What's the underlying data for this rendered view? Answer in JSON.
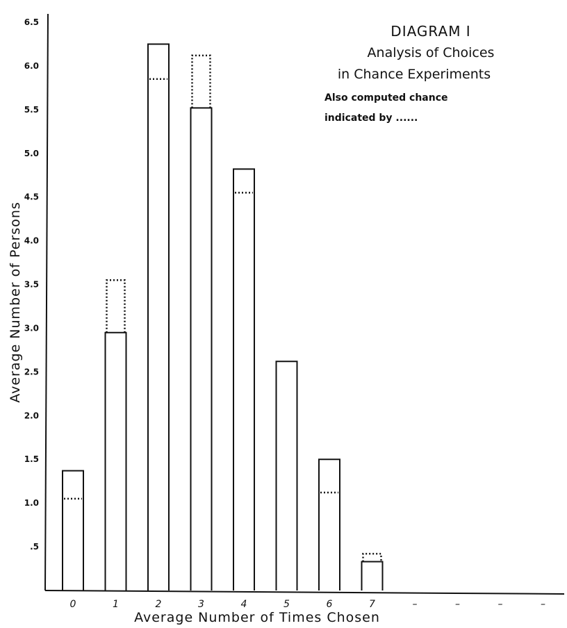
{
  "chart_data": {
    "type": "bar",
    "title": "DIAGRAM I",
    "subtitle_line1": "Analysis of Choices",
    "subtitle_line2": "in Chance Experiments",
    "note_line1": "Also computed chance",
    "note_line2": "indicated by ......",
    "xlabel": "Average Number of Times Chosen",
    "ylabel": "Average Number of Persons",
    "categories": [
      "0",
      "1",
      "2",
      "3",
      "4",
      "5",
      "6",
      "7"
    ],
    "extra_x_ticks": [
      "–",
      "–",
      "–",
      "–"
    ],
    "series": [
      {
        "values": [
          1.37,
          2.95,
          6.25,
          5.52,
          4.82,
          2.62,
          1.5,
          0.33
        ]
      },
      {
        "values": [
          1.05,
          3.55,
          5.85,
          6.12,
          4.55,
          null,
          1.12,
          0.42
        ]
      }
    ],
    "y_ticks": [
      ".5",
      "1.0",
      "1.5",
      "2.0",
      "2.5",
      "3.0",
      "3.5",
      "4.0",
      "4.5",
      "5.0",
      "5.5",
      "6.0",
      "6.5"
    ],
    "ylim": [
      0,
      6.6
    ],
    "grid": false,
    "colors": {
      "ink": "#111111",
      "background": "#ffffff"
    }
  }
}
